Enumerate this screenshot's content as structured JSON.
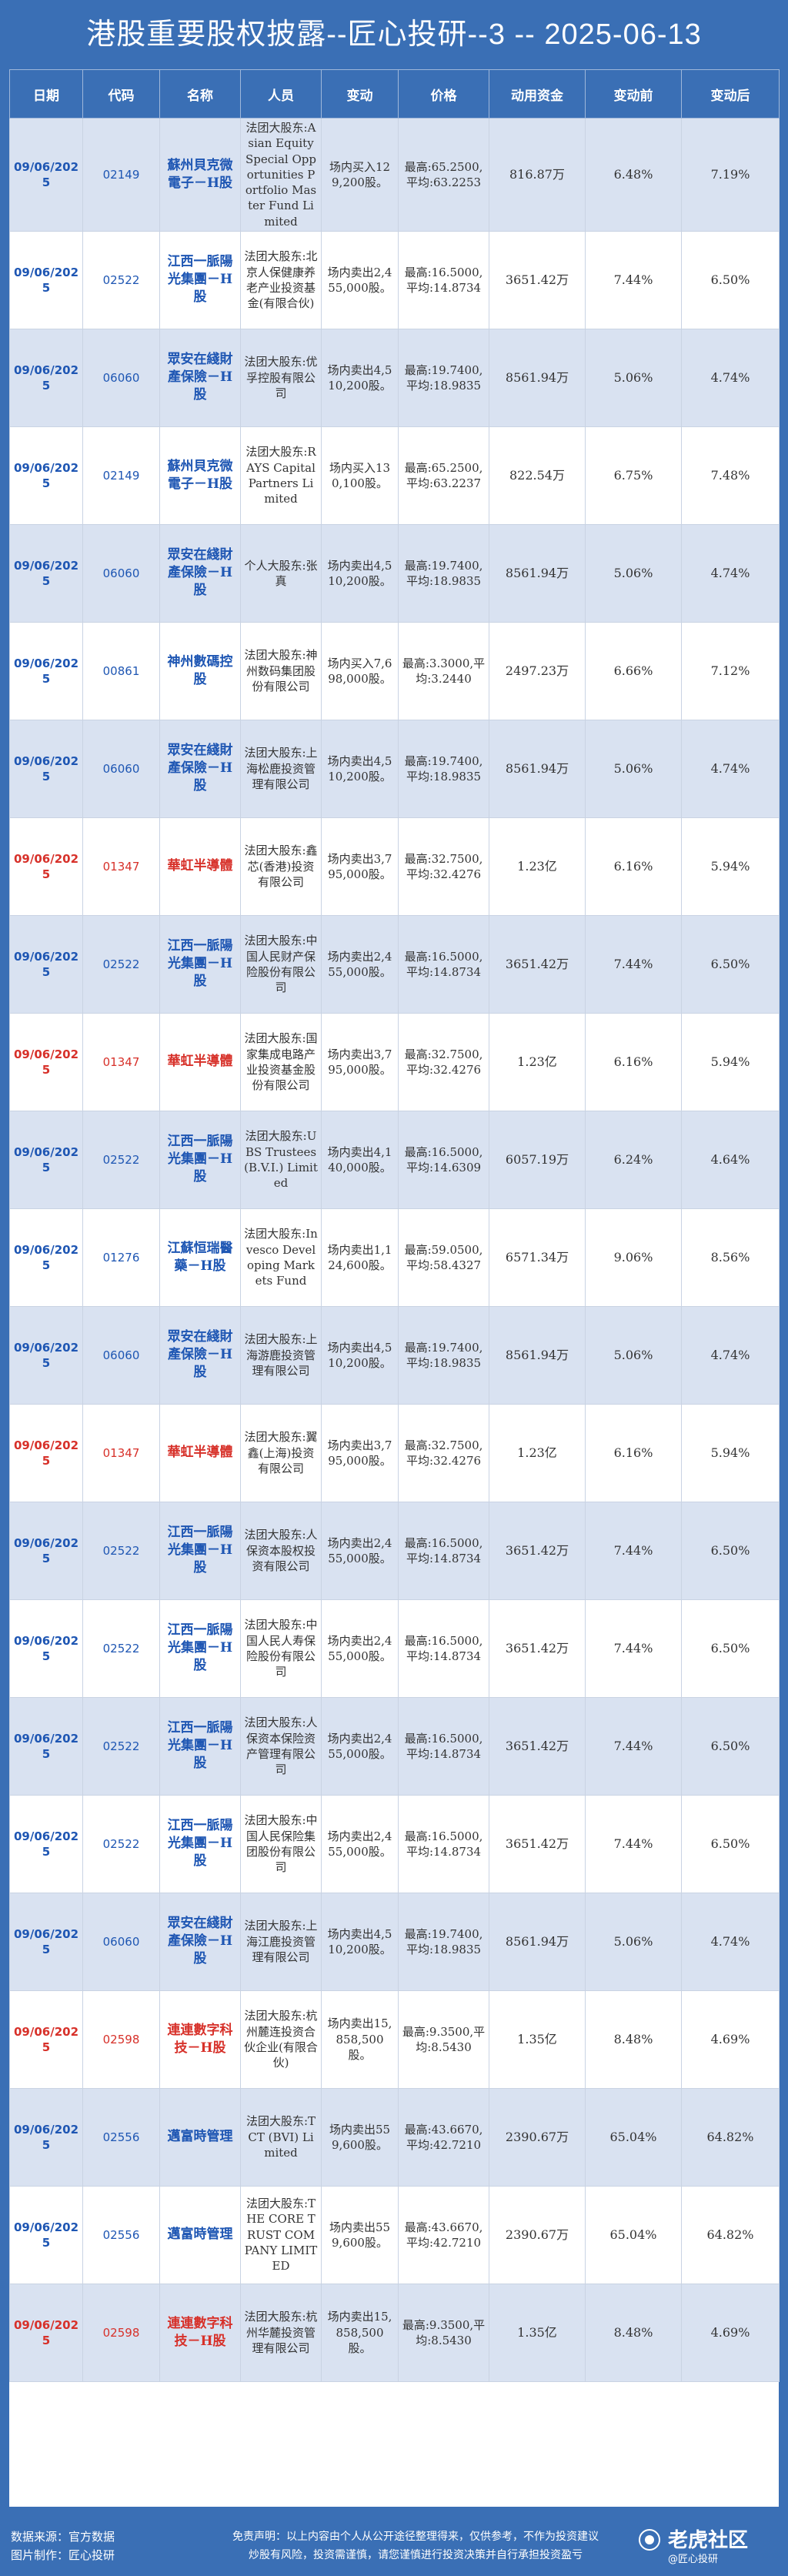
{
  "title": "港股重要股权披露--匠心投研--3 -- 2025-06-13",
  "headers": [
    "日期",
    "代码",
    "名称",
    "人员",
    "变动",
    "价格",
    "动用资金",
    "变动前",
    "变动后"
  ],
  "rows": [
    {
      "date": "09/06/2025",
      "code": "02149",
      "name": "蘇州貝克微電子－H股",
      "person": "法团大股东:Asian Equity Special Opportunities Portfolio Master Fund Limited",
      "change": "场内买入129,200股。",
      "price": "最高:65.2500,平均:63.2253",
      "funds": "816.87万",
      "before": "6.48%",
      "after": "7.19%",
      "highlight": false
    },
    {
      "date": "09/06/2025",
      "code": "02522",
      "name": "江西一脈陽光集團－H股",
      "person": "法团大股东:北京人保健康养老产业投资基金(有限合伙)",
      "change": "场内卖出2,455,000股。",
      "price": "最高:16.5000,平均:14.8734",
      "funds": "3651.42万",
      "before": "7.44%",
      "after": "6.50%",
      "highlight": false
    },
    {
      "date": "09/06/2025",
      "code": "06060",
      "name": "眾安在綫財產保險－H股",
      "person": "法团大股东:优孚控股有限公司",
      "change": "场内卖出4,510,200股。",
      "price": "最高:19.7400,平均:18.9835",
      "funds": "8561.94万",
      "before": "5.06%",
      "after": "4.74%",
      "highlight": false
    },
    {
      "date": "09/06/2025",
      "code": "02149",
      "name": "蘇州貝克微電子－H股",
      "person": "法团大股东:RAYS Capital Partners Limited",
      "change": "场内买入130,100股。",
      "price": "最高:65.2500,平均:63.2237",
      "funds": "822.54万",
      "before": "6.75%",
      "after": "7.48%",
      "highlight": false
    },
    {
      "date": "09/06/2025",
      "code": "06060",
      "name": "眾安在綫財產保險－H股",
      "person": "个人大股东:张真",
      "change": "场内卖出4,510,200股。",
      "price": "最高:19.7400,平均:18.9835",
      "funds": "8561.94万",
      "before": "5.06%",
      "after": "4.74%",
      "highlight": false
    },
    {
      "date": "09/06/2025",
      "code": "00861",
      "name": "神州數碼控股",
      "person": "法团大股东:神州数码集团股份有限公司",
      "change": "场内买入7,698,000股。",
      "price": "最高:3.3000,平均:3.2440",
      "funds": "2497.23万",
      "before": "6.66%",
      "after": "7.12%",
      "highlight": false
    },
    {
      "date": "09/06/2025",
      "code": "06060",
      "name": "眾安在綫財產保險－H股",
      "person": "法团大股东:上海松鹿投资管理有限公司",
      "change": "场内卖出4,510,200股。",
      "price": "最高:19.7400,平均:18.9835",
      "funds": "8561.94万",
      "before": "5.06%",
      "after": "4.74%",
      "highlight": false
    },
    {
      "date": "09/06/2025",
      "code": "01347",
      "name": "華虹半導體",
      "person": "法团大股东:鑫芯(香港)投资有限公司",
      "change": "场内卖出3,795,000股。",
      "price": "最高:32.7500,平均:32.4276",
      "funds": "1.23亿",
      "before": "6.16%",
      "after": "5.94%",
      "highlight": true
    },
    {
      "date": "09/06/2025",
      "code": "02522",
      "name": "江西一脈陽光集團－H股",
      "person": "法团大股东:中国人民财产保险股份有限公司",
      "change": "场内卖出2,455,000股。",
      "price": "最高:16.5000,平均:14.8734",
      "funds": "3651.42万",
      "before": "7.44%",
      "after": "6.50%",
      "highlight": false
    },
    {
      "date": "09/06/2025",
      "code": "01347",
      "name": "華虹半導體",
      "person": "法团大股东:国家集成电路产业投资基金股份有限公司",
      "change": "场内卖出3,795,000股。",
      "price": "最高:32.7500,平均:32.4276",
      "funds": "1.23亿",
      "before": "6.16%",
      "after": "5.94%",
      "highlight": true
    },
    {
      "date": "09/06/2025",
      "code": "02522",
      "name": "江西一脈陽光集團－H股",
      "person": "法团大股东:UBS Trustees (B.V.I.) Limited",
      "change": "场内卖出4,140,000股。",
      "price": "最高:16.5000,平均:14.6309",
      "funds": "6057.19万",
      "before": "6.24%",
      "after": "4.64%",
      "highlight": false
    },
    {
      "date": "09/06/2025",
      "code": "01276",
      "name": "江蘇恒瑞醫藥－H股",
      "person": "法团大股东:Invesco Developing Markets Fund",
      "change": "场内卖出1,124,600股。",
      "price": "最高:59.0500,平均:58.4327",
      "funds": "6571.34万",
      "before": "9.06%",
      "after": "8.56%",
      "highlight": false
    },
    {
      "date": "09/06/2025",
      "code": "06060",
      "name": "眾安在綫財產保險－H股",
      "person": "法团大股东:上海游鹿投资管理有限公司",
      "change": "场内卖出4,510,200股。",
      "price": "最高:19.7400,平均:18.9835",
      "funds": "8561.94万",
      "before": "5.06%",
      "after": "4.74%",
      "highlight": false
    },
    {
      "date": "09/06/2025",
      "code": "01347",
      "name": "華虹半導體",
      "person": "法团大股东:翼鑫(上海)投资有限公司",
      "change": "场内卖出3,795,000股。",
      "price": "最高:32.7500,平均:32.4276",
      "funds": "1.23亿",
      "before": "6.16%",
      "after": "5.94%",
      "highlight": true
    },
    {
      "date": "09/06/2025",
      "code": "02522",
      "name": "江西一脈陽光集團－H股",
      "person": "法团大股东:人保资本股权投资有限公司",
      "change": "场内卖出2,455,000股。",
      "price": "最高:16.5000,平均:14.8734",
      "funds": "3651.42万",
      "before": "7.44%",
      "after": "6.50%",
      "highlight": false
    },
    {
      "date": "09/06/2025",
      "code": "02522",
      "name": "江西一脈陽光集團－H股",
      "person": "法团大股东:中国人民人寿保险股份有限公司",
      "change": "场内卖出2,455,000股。",
      "price": "最高:16.5000,平均:14.8734",
      "funds": "3651.42万",
      "before": "7.44%",
      "after": "6.50%",
      "highlight": false
    },
    {
      "date": "09/06/2025",
      "code": "02522",
      "name": "江西一脈陽光集團－H股",
      "person": "法团大股东:人保资本保险资产管理有限公司",
      "change": "场内卖出2,455,000股。",
      "price": "最高:16.5000,平均:14.8734",
      "funds": "3651.42万",
      "before": "7.44%",
      "after": "6.50%",
      "highlight": false
    },
    {
      "date": "09/06/2025",
      "code": "02522",
      "name": "江西一脈陽光集團－H股",
      "person": "法团大股东:中国人民保险集团股份有限公司",
      "change": "场内卖出2,455,000股。",
      "price": "最高:16.5000,平均:14.8734",
      "funds": "3651.42万",
      "before": "7.44%",
      "after": "6.50%",
      "highlight": false
    },
    {
      "date": "09/06/2025",
      "code": "06060",
      "name": "眾安在綫財產保險－H股",
      "person": "法团大股东:上海江鹿投资管理有限公司",
      "change": "场内卖出4,510,200股。",
      "price": "最高:19.7400,平均:18.9835",
      "funds": "8561.94万",
      "before": "5.06%",
      "after": "4.74%",
      "highlight": false
    },
    {
      "date": "09/06/2025",
      "code": "02598",
      "name": "連連數字科技－H股",
      "person": "法团大股东:杭州麓连投资合伙企业(有限合伙)",
      "change": "场内卖出15,858,500股。",
      "price": "最高:9.3500,平均:8.5430",
      "funds": "1.35亿",
      "before": "8.48%",
      "after": "4.69%",
      "highlight": true
    },
    {
      "date": "09/06/2025",
      "code": "02556",
      "name": "邁富時管理",
      "person": "法团大股东:TCT (BVI) Limited",
      "change": "场内卖出559,600股。",
      "price": "最高:43.6670,平均:42.7210",
      "funds": "2390.67万",
      "before": "65.04%",
      "after": "64.82%",
      "highlight": false
    },
    {
      "date": "09/06/2025",
      "code": "02556",
      "name": "邁富時管理",
      "person": "法团大股东:THE CORE TRUST COMPANY LIMITED",
      "change": "场内卖出559,600股。",
      "price": "最高:43.6670,平均:42.7210",
      "funds": "2390.67万",
      "before": "65.04%",
      "after": "64.82%",
      "highlight": false
    },
    {
      "date": "09/06/2025",
      "code": "02598",
      "name": "連連數字科技－H股",
      "person": "法团大股东:杭州华麓投资管理有限公司",
      "change": "场内卖出15,858,500股。",
      "price": "最高:9.3500,平均:8.5430",
      "funds": "1.35亿",
      "before": "8.48%",
      "after": "4.69%",
      "highlight": true
    }
  ],
  "footer": {
    "source": "数据来源：官方数据",
    "maker": "图片制作：匠心投研",
    "disclaimer_line1": "免责声明：以上内容由个人从公开途径整理得来，仅供参考，不作为投资建议",
    "disclaimer_line2": "炒股有风险，投资需谨慎，请您谨慎进行投资决策并自行承担投资盈亏",
    "logo_text": "老虎社区",
    "logo_sub": "@匠心投研"
  },
  "colors": {
    "header_bg": "#3a6fb5",
    "shaded_row": "#d9e2f1",
    "blue_text": "#1e56b3",
    "red_text": "#d7312a"
  }
}
